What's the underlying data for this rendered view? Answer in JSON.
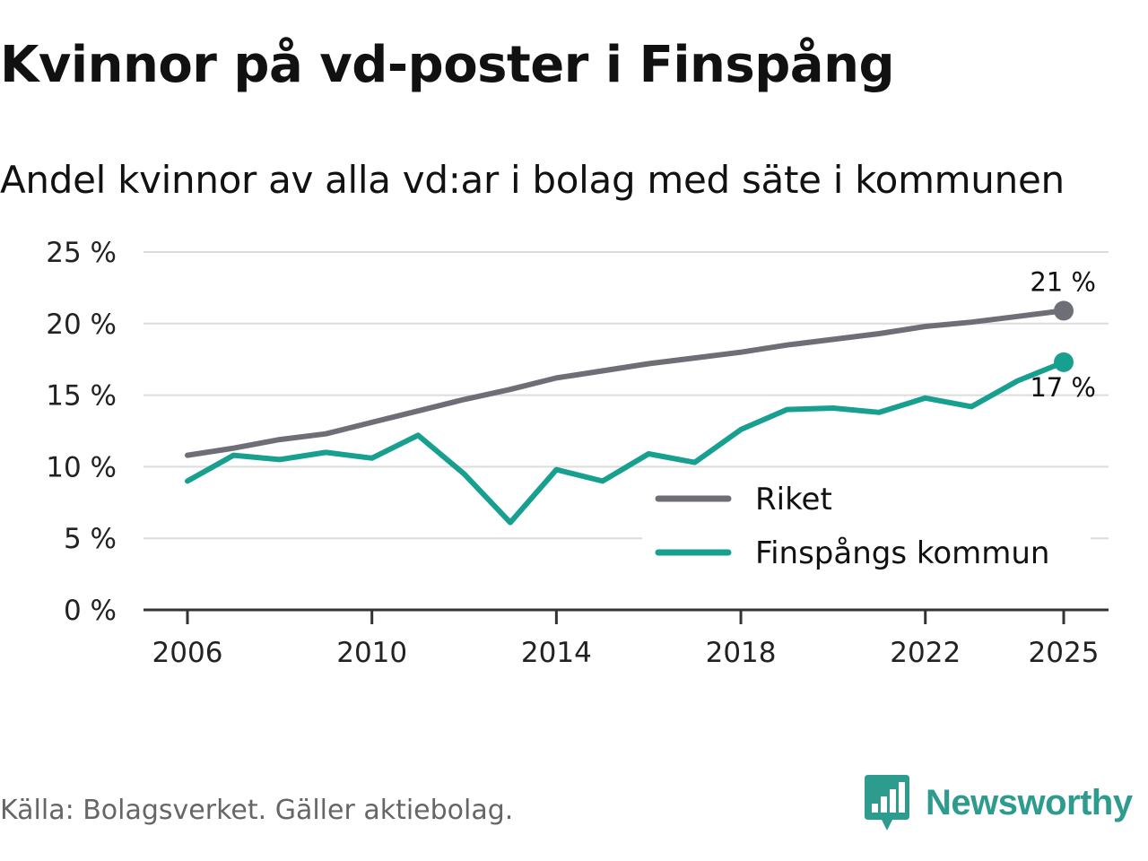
{
  "title": "Kvinnor på vd-poster i Finspång",
  "subtitle": "Andel kvinnor av alla vd:ar i bolag med säte i kommunen",
  "source": "Källa: Bolagsverket. Gäller aktiebolag.",
  "brand": {
    "name": "Newsworthy",
    "icon": "newsworthy-logo-icon",
    "color": "#2e9b8f"
  },
  "chart_data": {
    "type": "line",
    "title": "Kvinnor på vd-poster i Finspång",
    "subtitle": "Andel kvinnor av alla vd:ar i bolag med säte i kommunen",
    "xlabel": "",
    "ylabel": "",
    "x": [
      2006,
      2007,
      2008,
      2009,
      2010,
      2011,
      2012,
      2013,
      2014,
      2015,
      2016,
      2017,
      2018,
      2019,
      2020,
      2021,
      2022,
      2023,
      2024,
      2025
    ],
    "x_ticks": [
      "2006",
      "2010",
      "2014",
      "2018",
      "2022",
      "2025"
    ],
    "xlim": [
      2005,
      2026
    ],
    "ylim": [
      0,
      25
    ],
    "y_ticks": [
      0,
      5,
      10,
      15,
      20,
      25
    ],
    "y_tick_labels": [
      "0 %",
      "5 %",
      "10 %",
      "15 %",
      "20 %",
      "25 %"
    ],
    "grid": true,
    "legend_position": "bottom-right",
    "series": [
      {
        "name": "Riket",
        "color": "#6e6e76",
        "values": [
          10.8,
          11.3,
          11.9,
          12.3,
          13.1,
          13.9,
          14.7,
          15.4,
          16.2,
          16.7,
          17.2,
          17.6,
          18.0,
          18.5,
          18.9,
          19.3,
          19.8,
          20.1,
          20.5,
          20.9
        ],
        "end_label": "21 %"
      },
      {
        "name": "Finspångs kommun",
        "color": "#17a090",
        "values": [
          9.0,
          10.8,
          10.5,
          11.0,
          10.6,
          12.2,
          9.5,
          6.1,
          9.8,
          9.0,
          10.9,
          10.3,
          12.6,
          14.0,
          14.1,
          13.8,
          14.8,
          14.2,
          16.0,
          17.3
        ],
        "end_label": "17 %"
      }
    ]
  }
}
